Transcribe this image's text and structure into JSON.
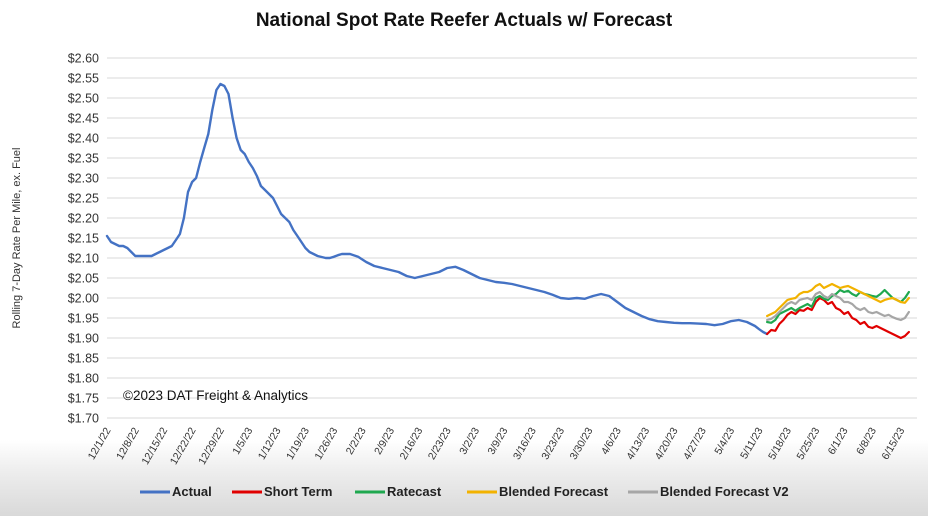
{
  "chart_data": {
    "type": "line",
    "title": "National Spot Rate Reefer Actuals w/ Forecast",
    "ylabel": "Rolling 7-Day Rate Per Mile, ex. Fuel",
    "xlabel": "",
    "ylim": [
      1.7,
      2.6
    ],
    "yticks": [
      1.7,
      1.75,
      1.8,
      1.85,
      1.9,
      1.95,
      2.0,
      2.05,
      2.1,
      2.15,
      2.2,
      2.25,
      2.3,
      2.35,
      2.4,
      2.45,
      2.5,
      2.55,
      2.6
    ],
    "ytick_labels": [
      "$1.70",
      "$1.75",
      "$1.80",
      "$1.85",
      "$1.90",
      "$1.95",
      "$2.00",
      "$2.05",
      "$2.10",
      "$2.15",
      "$2.20",
      "$2.25",
      "$2.30",
      "$2.35",
      "$2.40",
      "$2.45",
      "$2.50",
      "$2.55",
      "$2.60"
    ],
    "x_range_days": [
      0,
      200
    ],
    "xtick_labels": [
      "12/1/22",
      "12/8/22",
      "12/15/22",
      "12/22/22",
      "12/29/22",
      "1/5/23",
      "1/12/23",
      "1/19/23",
      "1/26/23",
      "2/2/23",
      "2/9/23",
      "2/16/23",
      "2/23/23",
      "3/2/23",
      "3/9/23",
      "3/16/23",
      "3/23/23",
      "3/30/23",
      "4/6/23",
      "4/13/23",
      "4/20/23",
      "4/27/23",
      "5/4/23",
      "5/11/23",
      "5/18/23",
      "5/25/23",
      "6/1/23",
      "6/8/23",
      "6/15/23"
    ],
    "xtick_days": [
      0,
      7,
      14,
      21,
      28,
      35,
      42,
      49,
      56,
      63,
      70,
      77,
      84,
      91,
      98,
      105,
      112,
      119,
      126,
      133,
      140,
      147,
      154,
      161,
      168,
      175,
      182,
      189,
      196
    ],
    "annotation": "©2023 DAT Freight & Analytics",
    "legend_position": "bottom",
    "series": [
      {
        "name": "Actual",
        "color": "#4472C4",
        "x": [
          0,
          1,
          2,
          3,
          4,
          5,
          6,
          7,
          8,
          9,
          10,
          11,
          12,
          13,
          14,
          15,
          16,
          17,
          18,
          19,
          20,
          21,
          22,
          23,
          24,
          25,
          26,
          27,
          28,
          29,
          30,
          31,
          32,
          33,
          34,
          35,
          36,
          37,
          38,
          39,
          40,
          41,
          42,
          43,
          44,
          45,
          46,
          47,
          48,
          49,
          50,
          52,
          54,
          55,
          56,
          57,
          58,
          60,
          62,
          64,
          66,
          68,
          70,
          72,
          74,
          76,
          78,
          80,
          82,
          84,
          86,
          88,
          90,
          92,
          94,
          96,
          98,
          100,
          102,
          104,
          106,
          108,
          110,
          112,
          114,
          116,
          118,
          120,
          122,
          124,
          126,
          128,
          130,
          132,
          134,
          136,
          138,
          140,
          142,
          144,
          146,
          148,
          150,
          152,
          154,
          156,
          158,
          160,
          161,
          162,
          163
        ],
        "y": [
          2.155,
          2.14,
          2.135,
          2.13,
          2.13,
          2.125,
          2.115,
          2.105,
          2.105,
          2.105,
          2.105,
          2.105,
          2.11,
          2.115,
          2.12,
          2.125,
          2.13,
          2.145,
          2.16,
          2.2,
          2.265,
          2.29,
          2.3,
          2.34,
          2.375,
          2.41,
          2.47,
          2.52,
          2.535,
          2.53,
          2.51,
          2.45,
          2.4,
          2.37,
          2.36,
          2.34,
          2.325,
          2.305,
          2.28,
          2.27,
          2.26,
          2.25,
          2.23,
          2.21,
          2.2,
          2.19,
          2.17,
          2.155,
          2.14,
          2.125,
          2.115,
          2.105,
          2.1,
          2.1,
          2.103,
          2.107,
          2.11,
          2.11,
          2.103,
          2.09,
          2.08,
          2.075,
          2.07,
          2.065,
          2.055,
          2.05,
          2.055,
          2.06,
          2.065,
          2.075,
          2.078,
          2.07,
          2.06,
          2.05,
          2.045,
          2.04,
          2.038,
          2.035,
          2.03,
          2.025,
          2.02,
          2.015,
          2.008,
          2.0,
          1.998,
          2.0,
          1.998,
          2.005,
          2.01,
          2.005,
          1.99,
          1.975,
          1.965,
          1.955,
          1.947,
          1.942,
          1.94,
          1.938,
          1.937,
          1.937,
          1.936,
          1.935,
          1.932,
          1.935,
          1.942,
          1.945,
          1.94,
          1.93,
          1.922,
          1.915,
          1.91
        ]
      },
      {
        "name": "Short Term",
        "color": "#E00000",
        "x": [
          163,
          164,
          165,
          166,
          167,
          168,
          169,
          170,
          171,
          172,
          173,
          174,
          175,
          176,
          177,
          178,
          179,
          180,
          181,
          182,
          183,
          184,
          185,
          186,
          187,
          188,
          189,
          190,
          191,
          192,
          193,
          194,
          195,
          196,
          197,
          198
        ],
        "y": [
          1.91,
          1.92,
          1.918,
          1.935,
          1.945,
          1.958,
          1.965,
          1.96,
          1.97,
          1.968,
          1.975,
          1.97,
          1.99,
          2.0,
          1.995,
          1.985,
          1.99,
          1.975,
          1.97,
          1.96,
          1.965,
          1.95,
          1.945,
          1.935,
          1.94,
          1.928,
          1.925,
          1.93,
          1.925,
          1.92,
          1.915,
          1.91,
          1.905,
          1.9,
          1.905,
          1.915
        ]
      },
      {
        "name": "Ratecast",
        "color": "#1FA84F",
        "x": [
          163,
          164,
          165,
          166,
          167,
          168,
          169,
          170,
          171,
          172,
          173,
          174,
          175,
          176,
          177,
          178,
          179,
          180,
          181,
          182,
          183,
          184,
          185,
          186,
          187,
          188,
          189,
          190,
          191,
          192,
          193,
          194,
          195,
          196,
          197,
          198
        ],
        "y": [
          1.94,
          1.938,
          1.945,
          1.96,
          1.965,
          1.97,
          1.975,
          1.968,
          1.975,
          1.98,
          1.985,
          1.978,
          2.0,
          2.005,
          1.998,
          1.995,
          2.005,
          2.01,
          2.02,
          2.015,
          2.018,
          2.01,
          2.005,
          2.015,
          2.01,
          2.008,
          2.005,
          2.003,
          2.01,
          2.02,
          2.01,
          2.0,
          1.995,
          1.99,
          2.0,
          2.015
        ]
      },
      {
        "name": "Blended Forecast",
        "color": "#F2B200",
        "x": [
          163,
          164,
          165,
          166,
          167,
          168,
          169,
          170,
          171,
          172,
          173,
          174,
          175,
          176,
          177,
          178,
          179,
          180,
          181,
          182,
          183,
          184,
          185,
          186,
          187,
          188,
          189,
          190,
          191,
          192,
          193,
          194,
          195,
          196,
          197,
          198
        ],
        "y": [
          1.955,
          1.96,
          1.965,
          1.975,
          1.985,
          1.995,
          1.998,
          2.0,
          2.01,
          2.015,
          2.015,
          2.02,
          2.03,
          2.035,
          2.025,
          2.03,
          2.035,
          2.03,
          2.025,
          2.028,
          2.03,
          2.025,
          2.02,
          2.015,
          2.01,
          2.005,
          2.0,
          1.995,
          1.99,
          1.995,
          1.998,
          2.0,
          1.995,
          1.99,
          1.988,
          2.0
        ]
      },
      {
        "name": "Blended Forecast V2",
        "color": "#A6A6A6",
        "x": [
          163,
          164,
          165,
          166,
          167,
          168,
          169,
          170,
          171,
          172,
          173,
          174,
          175,
          176,
          177,
          178,
          179,
          180,
          181,
          182,
          183,
          184,
          185,
          186,
          187,
          188,
          189,
          190,
          191,
          192,
          193,
          194,
          195,
          196,
          197,
          198
        ],
        "y": [
          1.945,
          1.948,
          1.955,
          1.965,
          1.975,
          1.985,
          1.99,
          1.985,
          1.995,
          1.998,
          2.0,
          1.995,
          2.01,
          2.015,
          2.005,
          2.0,
          2.01,
          2.005,
          2.0,
          1.99,
          1.99,
          1.985,
          1.975,
          1.97,
          1.975,
          1.965,
          1.962,
          1.965,
          1.96,
          1.955,
          1.958,
          1.952,
          1.948,
          1.945,
          1.95,
          1.965
        ]
      }
    ]
  }
}
